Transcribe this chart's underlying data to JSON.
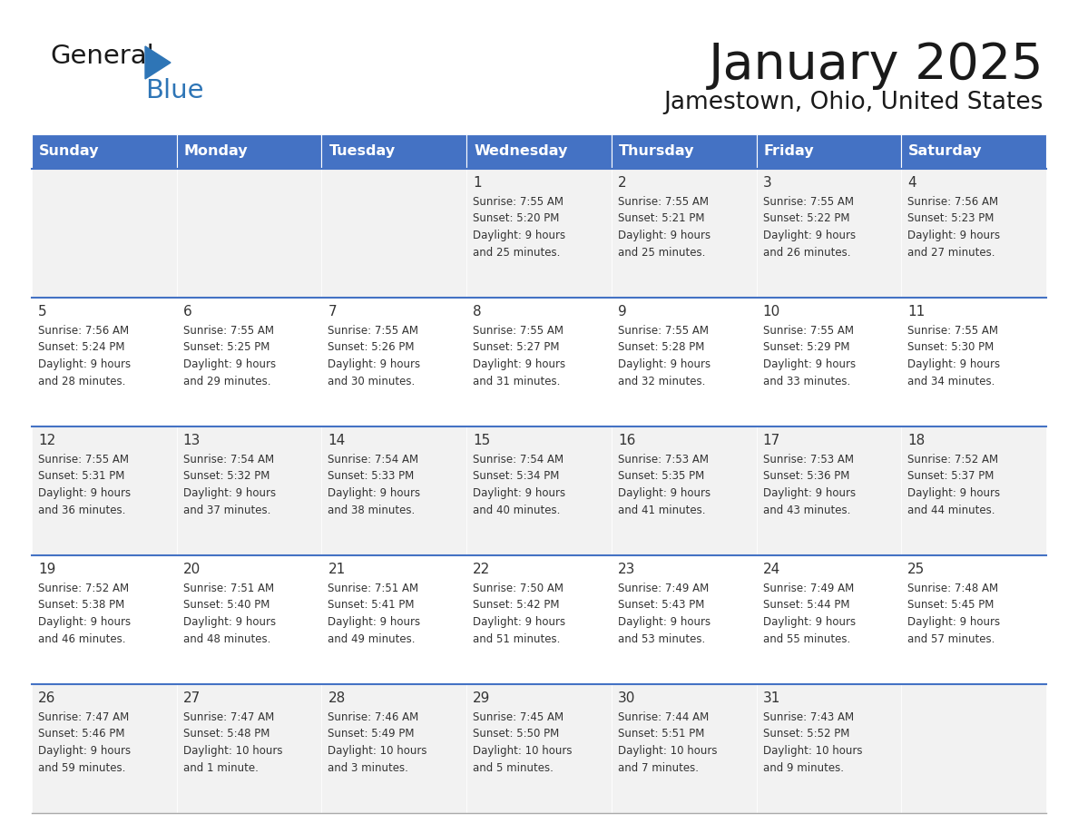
{
  "title": "January 2025",
  "subtitle": "Jamestown, Ohio, United States",
  "days_of_week": [
    "Sunday",
    "Monday",
    "Tuesday",
    "Wednesday",
    "Thursday",
    "Friday",
    "Saturday"
  ],
  "header_bg": "#4472C4",
  "header_text": "#FFFFFF",
  "row_bg_odd": "#F2F2F2",
  "row_bg_even": "#FFFFFF",
  "text_color": "#333333",
  "border_color": "#4472C4",
  "logo_text_color": "#1a1a1a",
  "logo_blue_color": "#2E75B6",
  "title_color": "#1a1a1a",
  "calendar": [
    [
      {
        "day": "",
        "info": ""
      },
      {
        "day": "",
        "info": ""
      },
      {
        "day": "",
        "info": ""
      },
      {
        "day": "1",
        "info": "Sunrise: 7:55 AM\nSunset: 5:20 PM\nDaylight: 9 hours\nand 25 minutes."
      },
      {
        "day": "2",
        "info": "Sunrise: 7:55 AM\nSunset: 5:21 PM\nDaylight: 9 hours\nand 25 minutes."
      },
      {
        "day": "3",
        "info": "Sunrise: 7:55 AM\nSunset: 5:22 PM\nDaylight: 9 hours\nand 26 minutes."
      },
      {
        "day": "4",
        "info": "Sunrise: 7:56 AM\nSunset: 5:23 PM\nDaylight: 9 hours\nand 27 minutes."
      }
    ],
    [
      {
        "day": "5",
        "info": "Sunrise: 7:56 AM\nSunset: 5:24 PM\nDaylight: 9 hours\nand 28 minutes."
      },
      {
        "day": "6",
        "info": "Sunrise: 7:55 AM\nSunset: 5:25 PM\nDaylight: 9 hours\nand 29 minutes."
      },
      {
        "day": "7",
        "info": "Sunrise: 7:55 AM\nSunset: 5:26 PM\nDaylight: 9 hours\nand 30 minutes."
      },
      {
        "day": "8",
        "info": "Sunrise: 7:55 AM\nSunset: 5:27 PM\nDaylight: 9 hours\nand 31 minutes."
      },
      {
        "day": "9",
        "info": "Sunrise: 7:55 AM\nSunset: 5:28 PM\nDaylight: 9 hours\nand 32 minutes."
      },
      {
        "day": "10",
        "info": "Sunrise: 7:55 AM\nSunset: 5:29 PM\nDaylight: 9 hours\nand 33 minutes."
      },
      {
        "day": "11",
        "info": "Sunrise: 7:55 AM\nSunset: 5:30 PM\nDaylight: 9 hours\nand 34 minutes."
      }
    ],
    [
      {
        "day": "12",
        "info": "Sunrise: 7:55 AM\nSunset: 5:31 PM\nDaylight: 9 hours\nand 36 minutes."
      },
      {
        "day": "13",
        "info": "Sunrise: 7:54 AM\nSunset: 5:32 PM\nDaylight: 9 hours\nand 37 minutes."
      },
      {
        "day": "14",
        "info": "Sunrise: 7:54 AM\nSunset: 5:33 PM\nDaylight: 9 hours\nand 38 minutes."
      },
      {
        "day": "15",
        "info": "Sunrise: 7:54 AM\nSunset: 5:34 PM\nDaylight: 9 hours\nand 40 minutes."
      },
      {
        "day": "16",
        "info": "Sunrise: 7:53 AM\nSunset: 5:35 PM\nDaylight: 9 hours\nand 41 minutes."
      },
      {
        "day": "17",
        "info": "Sunrise: 7:53 AM\nSunset: 5:36 PM\nDaylight: 9 hours\nand 43 minutes."
      },
      {
        "day": "18",
        "info": "Sunrise: 7:52 AM\nSunset: 5:37 PM\nDaylight: 9 hours\nand 44 minutes."
      }
    ],
    [
      {
        "day": "19",
        "info": "Sunrise: 7:52 AM\nSunset: 5:38 PM\nDaylight: 9 hours\nand 46 minutes."
      },
      {
        "day": "20",
        "info": "Sunrise: 7:51 AM\nSunset: 5:40 PM\nDaylight: 9 hours\nand 48 minutes."
      },
      {
        "day": "21",
        "info": "Sunrise: 7:51 AM\nSunset: 5:41 PM\nDaylight: 9 hours\nand 49 minutes."
      },
      {
        "day": "22",
        "info": "Sunrise: 7:50 AM\nSunset: 5:42 PM\nDaylight: 9 hours\nand 51 minutes."
      },
      {
        "day": "23",
        "info": "Sunrise: 7:49 AM\nSunset: 5:43 PM\nDaylight: 9 hours\nand 53 minutes."
      },
      {
        "day": "24",
        "info": "Sunrise: 7:49 AM\nSunset: 5:44 PM\nDaylight: 9 hours\nand 55 minutes."
      },
      {
        "day": "25",
        "info": "Sunrise: 7:48 AM\nSunset: 5:45 PM\nDaylight: 9 hours\nand 57 minutes."
      }
    ],
    [
      {
        "day": "26",
        "info": "Sunrise: 7:47 AM\nSunset: 5:46 PM\nDaylight: 9 hours\nand 59 minutes."
      },
      {
        "day": "27",
        "info": "Sunrise: 7:47 AM\nSunset: 5:48 PM\nDaylight: 10 hours\nand 1 minute."
      },
      {
        "day": "28",
        "info": "Sunrise: 7:46 AM\nSunset: 5:49 PM\nDaylight: 10 hours\nand 3 minutes."
      },
      {
        "day": "29",
        "info": "Sunrise: 7:45 AM\nSunset: 5:50 PM\nDaylight: 10 hours\nand 5 minutes."
      },
      {
        "day": "30",
        "info": "Sunrise: 7:44 AM\nSunset: 5:51 PM\nDaylight: 10 hours\nand 7 minutes."
      },
      {
        "day": "31",
        "info": "Sunrise: 7:43 AM\nSunset: 5:52 PM\nDaylight: 10 hours\nand 9 minutes."
      },
      {
        "day": "",
        "info": ""
      }
    ]
  ]
}
